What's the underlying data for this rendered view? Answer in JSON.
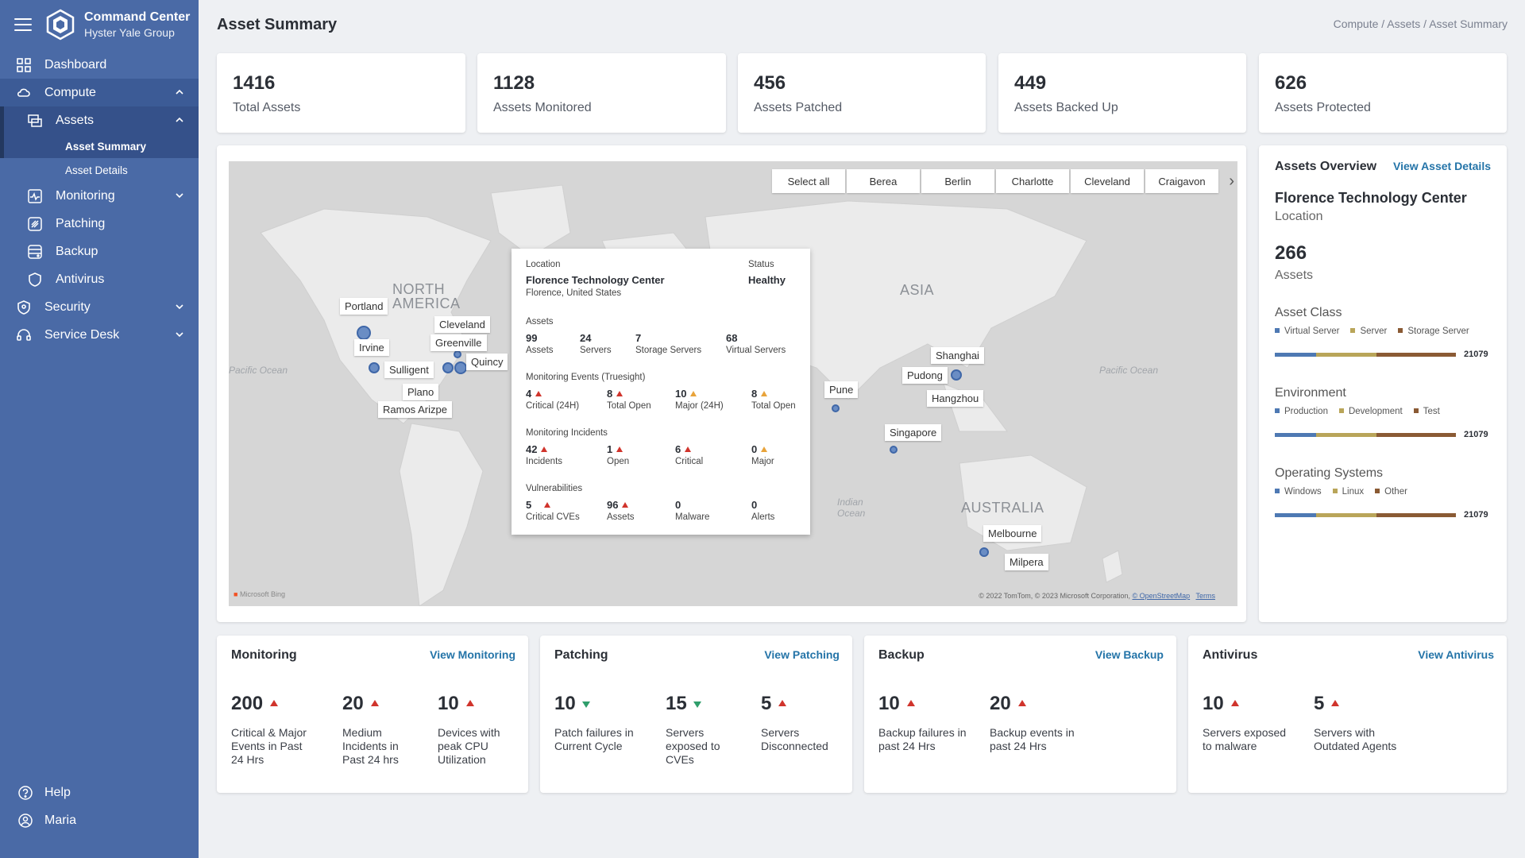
{
  "app": {
    "title": "Command Center",
    "org": "Hyster Yale Group"
  },
  "page": {
    "title": "Asset Summary",
    "breadcrumb": "Compute / Assets / Asset Summary"
  },
  "sidebar": {
    "items": [
      {
        "label": "Dashboard"
      },
      {
        "label": "Compute"
      },
      {
        "label": "Assets"
      },
      {
        "label": "Asset Summary"
      },
      {
        "label": "Asset Details"
      },
      {
        "label": "Monitoring"
      },
      {
        "label": "Patching"
      },
      {
        "label": "Backup"
      },
      {
        "label": "Antivirus"
      },
      {
        "label": "Security"
      },
      {
        "label": "Service Desk"
      }
    ],
    "bottom": [
      {
        "label": "Help"
      },
      {
        "label": "Maria"
      }
    ]
  },
  "stats": [
    {
      "value": "1416",
      "label": "Total Assets"
    },
    {
      "value": "1128",
      "label": "Assets Monitored"
    },
    {
      "value": "456",
      "label": "Assets Patched"
    },
    {
      "value": "449",
      "label": "Assets Backed Up"
    },
    {
      "value": "626",
      "label": "Assets Protected"
    }
  ],
  "map": {
    "filters": [
      "Select all",
      "Berea",
      "Berlin",
      "Charlotte",
      "Cleveland",
      "Craigavon"
    ],
    "regions": [
      "NORTH AMERICA",
      "ASIA",
      "AUSTRALIA"
    ],
    "oceans": [
      "Pacific Ocean",
      "Pacific Ocean",
      "Indian Ocean"
    ],
    "pins": [
      "Portland",
      "Irvine",
      "Sulligent",
      "Plano",
      "Ramos Arizpe",
      "Cleveland",
      "Greenville",
      "Quincy",
      "Pune",
      "Shanghai",
      "Pudong",
      "Hangzhou",
      "Singapore",
      "Melbourne",
      "Milpera"
    ],
    "credit": "© 2022 TomTom, © 2023 Microsoft Corporation, ",
    "credit_link": "© OpenStreetMap",
    "terms": "Terms",
    "bing": "Microsoft Bing"
  },
  "popup": {
    "location_label": "Location",
    "location": "Florence Technology Center",
    "city": "Florence, United States",
    "status_label": "Status",
    "status": "Healthy",
    "assets_label": "Assets",
    "assets": [
      {
        "value": "99",
        "label": "Assets"
      },
      {
        "value": "24",
        "label": "Servers"
      },
      {
        "value": "7",
        "label": "Storage Servers"
      },
      {
        "value": "68",
        "label": "Virtual Servers"
      }
    ],
    "events_label": "Monitoring Events (Truesight)",
    "events": [
      {
        "value": "4",
        "label": "Critical (24H)"
      },
      {
        "value": "8",
        "label": "Total Open"
      },
      {
        "value": "10",
        "label": "Major (24H)"
      },
      {
        "value": "8",
        "label": "Total Open"
      }
    ],
    "incidents_label": "Monitoring Incidents",
    "incidents": [
      {
        "value": "42",
        "label": "Incidents"
      },
      {
        "value": "1",
        "label": "Open"
      },
      {
        "value": "6",
        "label": "Critical"
      },
      {
        "value": "0",
        "label": "Major"
      }
    ],
    "vuln_label": "Vulnerabilities",
    "vulns": [
      {
        "value": "5",
        "label": "Critical CVEs"
      },
      {
        "value": "96",
        "label": "Assets"
      },
      {
        "value": "0",
        "label": "Malware"
      },
      {
        "value": "0",
        "label": "Alerts"
      }
    ]
  },
  "overview": {
    "title": "Assets Overview",
    "link": "View Asset Details",
    "location": "Florence Technology Center",
    "location_label": "Location",
    "count": "266",
    "count_label": "Assets",
    "groups": [
      {
        "title": "Asset Class",
        "legend": [
          "Virtual Server",
          "Server",
          "Storage Server"
        ],
        "total": "21079"
      },
      {
        "title": "Environment",
        "legend": [
          "Production",
          "Development",
          "Test"
        ],
        "total": "21079"
      },
      {
        "title": "Operating Systems",
        "legend": [
          "Windows",
          "Linux",
          "Other"
        ],
        "total": "21079"
      }
    ],
    "colors": [
      "#4e79b3",
      "#b9a559",
      "#8a5a34"
    ]
  },
  "panels": [
    {
      "title": "Monitoring",
      "link": "View Monitoring",
      "metrics": [
        {
          "value": "200",
          "desc": "Critical & Major Events in Past 24 Hrs"
        },
        {
          "value": "20",
          "desc": "Medium Incidents in Past 24 hrs"
        },
        {
          "value": "10",
          "desc": "Devices with peak CPU Utilization"
        }
      ]
    },
    {
      "title": "Patching",
      "link": "View Patching",
      "metrics": [
        {
          "value": "10",
          "desc": "Patch failures in Current Cycle"
        },
        {
          "value": "15",
          "desc": "Servers exposed to CVEs"
        },
        {
          "value": "5",
          "desc": "Servers Disconnected"
        }
      ]
    },
    {
      "title": "Backup",
      "link": "View Backup",
      "metrics": [
        {
          "value": "10",
          "desc": "Backup failures in past 24 Hrs"
        },
        {
          "value": "20",
          "desc": "Backup events in past 24 Hrs"
        }
      ]
    },
    {
      "title": "Antivirus",
      "link": "View Antivirus",
      "metrics": [
        {
          "value": "10",
          "desc": "Servers exposed to malware"
        },
        {
          "value": "5",
          "desc": "Servers with Outdated Agents"
        }
      ]
    }
  ]
}
